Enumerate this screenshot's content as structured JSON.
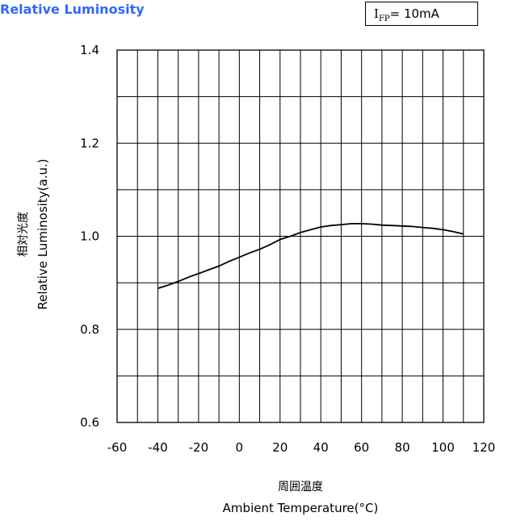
{
  "chart_data": {
    "type": "line",
    "title": "Relative Luminosity",
    "condition": {
      "label_main": "I",
      "label_sub": "FP",
      "label_value": "= 10mA"
    },
    "ylabel_jp": "相対光度",
    "ylabel": "Relative Luminosity(a.u.)",
    "xlabel_jp": "周囲温度",
    "xlabel": "Ambient Temperature(°C)",
    "xlim": [
      -60,
      120
    ],
    "ylim": [
      0.6,
      1.4
    ],
    "x_ticks": [
      -60,
      -40,
      -20,
      0,
      20,
      40,
      60,
      80,
      100,
      120
    ],
    "x_tick_labels": [
      "-60",
      "-40",
      "-20",
      "0",
      "20",
      "40",
      "60",
      "80",
      "100",
      "120"
    ],
    "y_ticks": [
      0.6,
      0.8,
      1.0,
      1.2,
      1.4
    ],
    "y_tick_labels": [
      "0.6",
      "0.8",
      "1.0",
      "1.2",
      "1.4"
    ],
    "grid": true,
    "series": [
      {
        "x": [
          -40,
          -35,
          -30,
          -25,
          -20,
          -15,
          -10,
          -5,
          0,
          5,
          10,
          15,
          20,
          25,
          30,
          35,
          40,
          45,
          50,
          55,
          60,
          65,
          70,
          75,
          80,
          85,
          90,
          95,
          100,
          105,
          110
        ],
        "y": [
          0.888,
          0.895,
          0.903,
          0.912,
          0.92,
          0.928,
          0.936,
          0.946,
          0.955,
          0.964,
          0.972,
          0.982,
          0.993,
          1.0,
          1.008,
          1.014,
          1.02,
          1.023,
          1.025,
          1.027,
          1.027,
          1.026,
          1.024,
          1.023,
          1.022,
          1.021,
          1.019,
          1.017,
          1.014,
          1.01,
          1.005
        ],
        "color": "#000000"
      }
    ]
  }
}
